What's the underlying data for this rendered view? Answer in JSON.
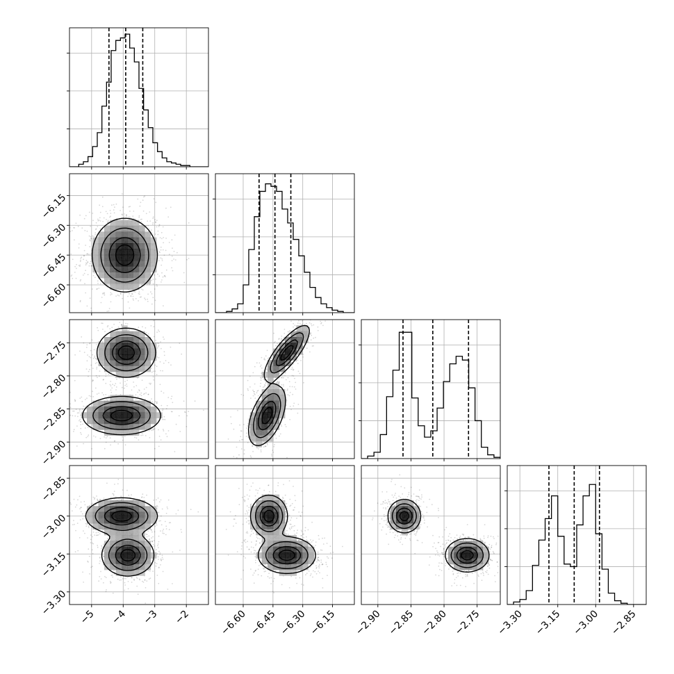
{
  "chart_data": {
    "type": "corner",
    "title": "",
    "grid": true,
    "parameters": [
      {
        "key": "p0",
        "range": [
          -5.7,
          -1.3
        ],
        "ticks": [
          -5,
          -4,
          -3,
          -2
        ],
        "tick_labels": [
          "−5",
          "−4",
          "−3",
          "−2"
        ],
        "quantiles": [
          -4.45,
          -3.92,
          -3.38
        ],
        "hist_y_max": 1.1,
        "hist_bins": [
          0.0,
          0.0,
          0.02,
          0.04,
          0.08,
          0.16,
          0.27,
          0.48,
          0.67,
          0.92,
          1.0,
          1.02,
          1.05,
          0.94,
          0.83,
          0.62,
          0.45,
          0.31,
          0.19,
          0.12,
          0.07,
          0.04,
          0.03,
          0.02,
          0.01,
          0.01,
          0.0,
          0.0,
          0.0,
          0.0
        ]
      },
      {
        "key": "p1",
        "range": [
          -6.74,
          -6.04
        ],
        "ticks": [
          -6.6,
          -6.45,
          -6.3,
          -6.15
        ],
        "tick_labels": [
          "−6.60",
          "−6.45",
          "−6.30",
          "−6.15"
        ],
        "quantiles": [
          -6.52,
          -6.44,
          -6.36
        ],
        "hist_y_max": 1.1,
        "hist_bins": [
          0.0,
          0.0,
          0.01,
          0.03,
          0.07,
          0.22,
          0.5,
          0.76,
          0.96,
          1.02,
          1.0,
          0.96,
          0.82,
          0.71,
          0.58,
          0.45,
          0.32,
          0.2,
          0.12,
          0.07,
          0.04,
          0.02,
          0.01,
          0.0,
          0.0
        ]
      },
      {
        "key": "p2",
        "range": [
          -2.925,
          -2.715
        ],
        "ticks": [
          -2.9,
          -2.85,
          -2.8,
          -2.75
        ],
        "tick_labels": [
          "−2.90",
          "−2.85",
          "−2.80",
          "−2.75"
        ],
        "quantiles": [
          -2.862,
          -2.817,
          -2.763
        ],
        "hist_y_max": 1.1,
        "hist_bins": [
          0.0,
          0.02,
          0.05,
          0.19,
          0.49,
          0.7,
          1.0,
          1.0,
          0.48,
          0.26,
          0.17,
          0.22,
          0.4,
          0.61,
          0.75,
          0.81,
          0.78,
          0.56,
          0.3,
          0.09,
          0.03,
          0.01
        ]
      },
      {
        "key": "p3",
        "range": [
          -3.35,
          -2.8
        ],
        "ticks": [
          -3.3,
          -3.15,
          -3.0,
          -2.85
        ],
        "tick_labels": [
          "−3.30",
          "−3.15",
          "−3.00",
          "−2.85"
        ],
        "quantiles": [
          -3.185,
          -3.085,
          -2.985
        ],
        "hist_y_max": 1.1,
        "hist_bins": [
          0.0,
          0.02,
          0.04,
          0.11,
          0.31,
          0.51,
          0.68,
          0.86,
          0.54,
          0.32,
          0.3,
          0.63,
          0.86,
          0.95,
          0.56,
          0.28,
          0.09,
          0.03,
          0.01,
          0.0,
          0.0,
          0.0
        ]
      }
    ],
    "density_2d": {
      "p0_p1": [
        {
          "center": [
            -3.95,
            -6.45
          ],
          "sigma": [
            0.5,
            0.09
          ],
          "rho": 0.0,
          "weight": 1
        }
      ],
      "p0_p2": [
        {
          "center": [
            -3.9,
            -2.765
          ],
          "sigma": [
            0.45,
            0.018
          ],
          "rho": 0.0,
          "weight": 1
        },
        {
          "center": [
            -4.05,
            -2.86
          ],
          "sigma": [
            0.6,
            0.014
          ],
          "rho": 0.0,
          "weight": 1
        }
      ],
      "p1_p2": [
        {
          "center": [
            -6.38,
            -2.765
          ],
          "sigma": [
            0.055,
            0.02
          ],
          "rho": 0.8,
          "weight": 1
        },
        {
          "center": [
            -6.48,
            -2.86
          ],
          "sigma": [
            0.045,
            0.022
          ],
          "rho": 0.5,
          "weight": 1
        }
      ],
      "p0_p3": [
        {
          "center": [
            -4.05,
            -3.0
          ],
          "sigma": [
            0.55,
            0.035
          ],
          "rho": 0.0,
          "weight": 1
        },
        {
          "center": [
            -3.85,
            -3.155
          ],
          "sigma": [
            0.4,
            0.04
          ],
          "rho": 0.0,
          "weight": 1
        }
      ],
      "p1_p3": [
        {
          "center": [
            -6.47,
            -3.0
          ],
          "sigma": [
            0.045,
            0.04
          ],
          "rho": 0.0,
          "weight": 1
        },
        {
          "center": [
            -6.38,
            -3.155
          ],
          "sigma": [
            0.07,
            0.035
          ],
          "rho": 0.0,
          "weight": 1
        }
      ],
      "p2_p3": [
        {
          "center": [
            -2.86,
            -3.0
          ],
          "sigma": [
            0.012,
            0.032
          ],
          "rho": 0.0,
          "weight": 1
        },
        {
          "center": [
            -2.765,
            -3.155
          ],
          "sigma": [
            0.016,
            0.032
          ],
          "rho": 0.0,
          "weight": 1
        }
      ]
    },
    "contour_levels": [
      0.12,
      0.32,
      0.62,
      0.85
    ]
  }
}
